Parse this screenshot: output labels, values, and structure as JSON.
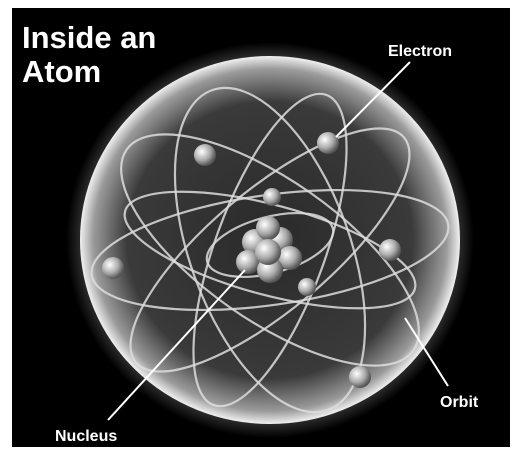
{
  "title": [
    "Inside an",
    "Atom"
  ],
  "labels": {
    "electron": "Electron",
    "orbit": "Orbit",
    "nucleus": "Nucleus"
  }
}
